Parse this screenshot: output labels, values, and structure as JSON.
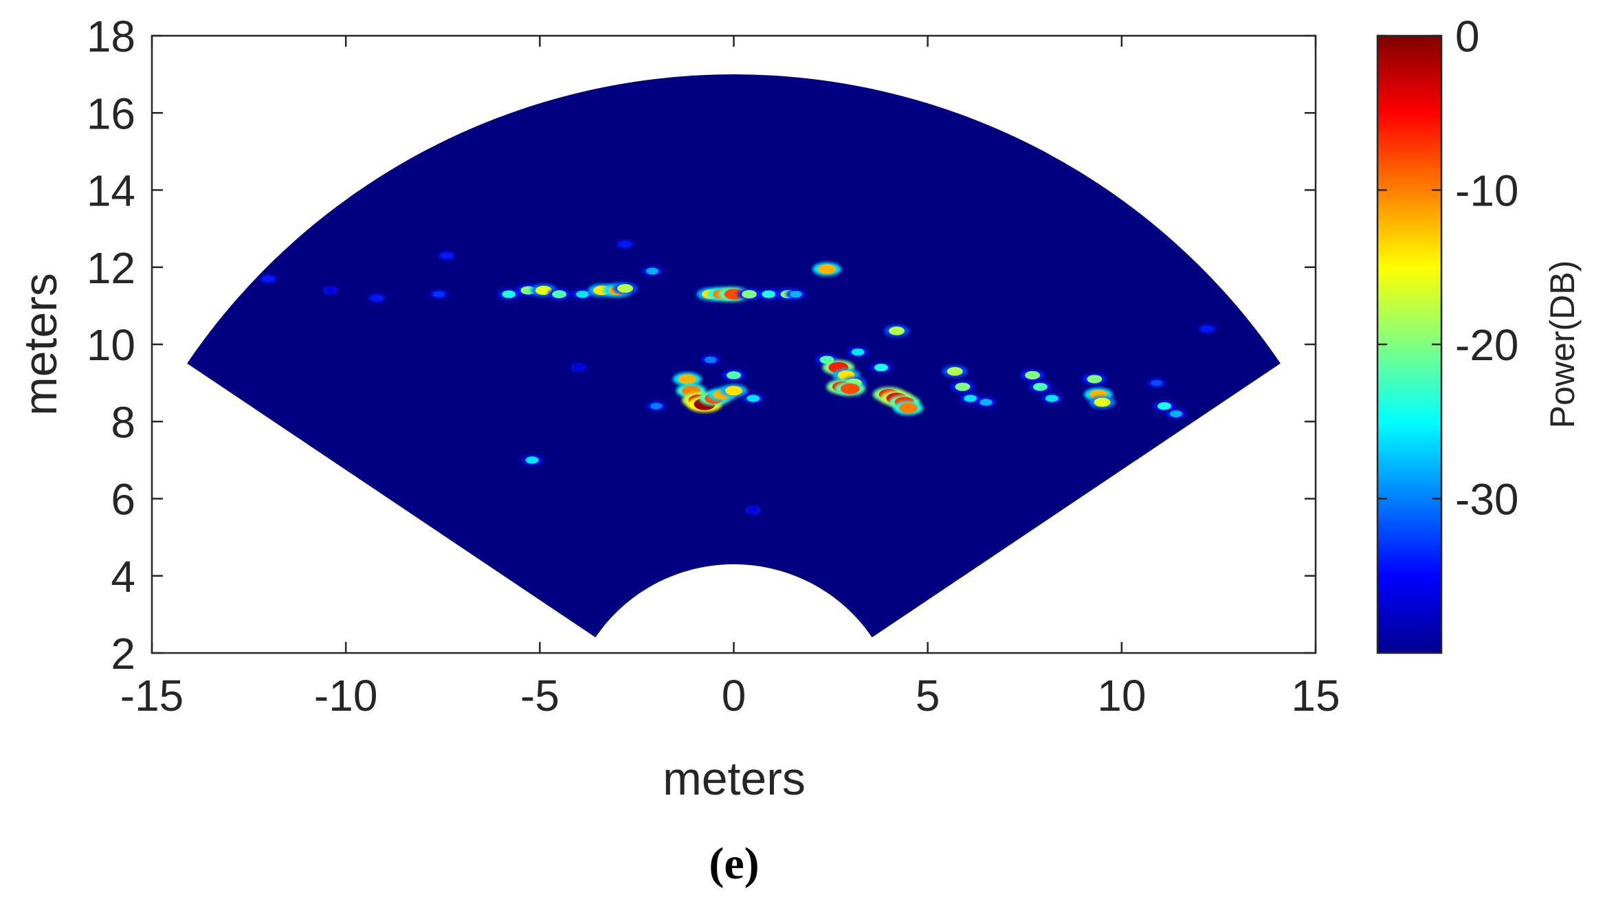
{
  "chart_data": {
    "type": "heatmap",
    "xlabel": "meters",
    "ylabel": "meters",
    "xlim": [
      -15,
      15
    ],
    "ylim": [
      2,
      18
    ],
    "xticks": [
      -15,
      -10,
      -5,
      0,
      5,
      10,
      15
    ],
    "yticks": [
      2,
      4,
      6,
      8,
      10,
      12,
      14,
      16,
      18
    ],
    "sector": {
      "r_inner": 4.3,
      "r_outer": 17.0,
      "half_angle_deg": 56
    },
    "colorbar": {
      "label": "Power(DB)",
      "range": [
        -40,
        0
      ],
      "ticks": [
        0,
        -10,
        -20,
        -30
      ],
      "colormap": "jet"
    },
    "background_db": -40,
    "hotspots": [
      {
        "x": -12.0,
        "y": 11.7,
        "db": -34
      },
      {
        "x": -10.4,
        "y": 11.4,
        "db": -36
      },
      {
        "x": -9.2,
        "y": 11.2,
        "db": -34
      },
      {
        "x": -7.6,
        "y": 11.3,
        "db": -33
      },
      {
        "x": -7.4,
        "y": 12.3,
        "db": -34
      },
      {
        "x": -5.8,
        "y": 11.3,
        "db": -24
      },
      {
        "x": -5.3,
        "y": 11.4,
        "db": -20
      },
      {
        "x": -4.9,
        "y": 11.4,
        "db": -16
      },
      {
        "x": -4.5,
        "y": 11.3,
        "db": -22
      },
      {
        "x": -3.9,
        "y": 11.3,
        "db": -26
      },
      {
        "x": -3.4,
        "y": 11.4,
        "db": -14
      },
      {
        "x": -3.0,
        "y": 11.4,
        "db": -12
      },
      {
        "x": -2.8,
        "y": 11.45,
        "db": -18
      },
      {
        "x": -2.1,
        "y": 11.9,
        "db": -28
      },
      {
        "x": -2.8,
        "y": 12.6,
        "db": -34
      },
      {
        "x": -5.2,
        "y": 7.0,
        "db": -26
      },
      {
        "x": -2.0,
        "y": 8.4,
        "db": -30
      },
      {
        "x": -0.6,
        "y": 11.3,
        "db": -14
      },
      {
        "x": -0.3,
        "y": 11.3,
        "db": -10
      },
      {
        "x": 0.0,
        "y": 11.3,
        "db": -8
      },
      {
        "x": 0.4,
        "y": 11.3,
        "db": -20
      },
      {
        "x": 0.9,
        "y": 11.3,
        "db": -24
      },
      {
        "x": 1.4,
        "y": 11.3,
        "db": -20
      },
      {
        "x": 1.6,
        "y": 11.3,
        "db": -28
      },
      {
        "x": 2.4,
        "y": 11.95,
        "db": -12
      },
      {
        "x": 4.2,
        "y": 10.35,
        "db": -18
      },
      {
        "x": -1.2,
        "y": 9.1,
        "db": -12
      },
      {
        "x": -1.1,
        "y": 8.8,
        "db": -10
      },
      {
        "x": -0.9,
        "y": 8.55,
        "db": -3
      },
      {
        "x": -0.75,
        "y": 8.45,
        "db": -1
      },
      {
        "x": -0.5,
        "y": 8.6,
        "db": -8
      },
      {
        "x": -0.3,
        "y": 8.7,
        "db": -12
      },
      {
        "x": -0.6,
        "y": 9.6,
        "db": -30
      },
      {
        "x": 0.0,
        "y": 9.2,
        "db": -22
      },
      {
        "x": 0.0,
        "y": 8.8,
        "db": -14
      },
      {
        "x": 0.5,
        "y": 8.6,
        "db": -26
      },
      {
        "x": 2.4,
        "y": 9.6,
        "db": -22
      },
      {
        "x": 2.7,
        "y": 9.4,
        "db": -6
      },
      {
        "x": 2.9,
        "y": 9.2,
        "db": -14
      },
      {
        "x": 3.1,
        "y": 9.0,
        "db": -18
      },
      {
        "x": 2.8,
        "y": 8.9,
        "db": -6
      },
      {
        "x": 3.0,
        "y": 8.85,
        "db": -8
      },
      {
        "x": 3.2,
        "y": 9.8,
        "db": -26
      },
      {
        "x": 3.8,
        "y": 9.4,
        "db": -24
      },
      {
        "x": 4.0,
        "y": 8.7,
        "db": -6
      },
      {
        "x": 4.2,
        "y": 8.6,
        "db": -4
      },
      {
        "x": 4.4,
        "y": 8.5,
        "db": -7
      },
      {
        "x": 4.5,
        "y": 8.35,
        "db": -10
      },
      {
        "x": 5.7,
        "y": 9.3,
        "db": -18
      },
      {
        "x": 5.9,
        "y": 8.9,
        "db": -20
      },
      {
        "x": 6.1,
        "y": 8.6,
        "db": -26
      },
      {
        "x": 6.5,
        "y": 8.5,
        "db": -28
      },
      {
        "x": 7.7,
        "y": 9.2,
        "db": -20
      },
      {
        "x": 7.9,
        "y": 8.9,
        "db": -22
      },
      {
        "x": 8.2,
        "y": 8.6,
        "db": -26
      },
      {
        "x": 9.3,
        "y": 9.1,
        "db": -20
      },
      {
        "x": 9.4,
        "y": 8.7,
        "db": -12
      },
      {
        "x": 9.5,
        "y": 8.5,
        "db": -16
      },
      {
        "x": 10.9,
        "y": 9.0,
        "db": -32
      },
      {
        "x": 11.1,
        "y": 8.4,
        "db": -24
      },
      {
        "x": 11.4,
        "y": 8.2,
        "db": -28
      },
      {
        "x": 12.2,
        "y": 10.4,
        "db": -34
      },
      {
        "x": 0.5,
        "y": 5.7,
        "db": -36
      },
      {
        "x": -4.0,
        "y": 9.4,
        "db": -36
      }
    ]
  },
  "caption": "(e)"
}
